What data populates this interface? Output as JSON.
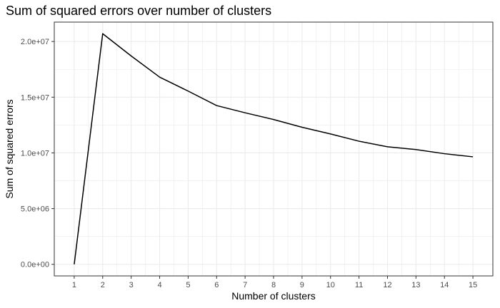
{
  "chart_data": {
    "type": "line",
    "title": "Sum of squared errors over number of clusters",
    "xlabel": "Number of clusters",
    "ylabel": "Sum of squared errors",
    "x": [
      1,
      2,
      3,
      4,
      5,
      6,
      7,
      8,
      9,
      10,
      11,
      12,
      13,
      14,
      15
    ],
    "series": [
      {
        "values": [
          0,
          20700000,
          18700000,
          16800000,
          15550000,
          14250000,
          13600000,
          13000000,
          12300000,
          11700000,
          11050000,
          10550000,
          10300000,
          9930000,
          9650000
        ]
      }
    ],
    "xticks": [
      "1",
      "2",
      "3",
      "4",
      "5",
      "6",
      "7",
      "8",
      "9",
      "10",
      "11",
      "12",
      "13",
      "14",
      "15"
    ],
    "yticks": [
      0,
      5000000,
      10000000,
      15000000,
      20000000
    ],
    "ytick_labels": [
      "0.0e+00",
      "5.0e+06",
      "1.0e+07",
      "1.5e+07",
      "2.0e+07"
    ],
    "xlim": [
      0.3,
      15.7
    ],
    "ylim": [
      -1040000,
      21740000
    ],
    "grid": true,
    "line_color": "#000000",
    "grid_color": "#ebebeb",
    "panel_border_color": "#333333"
  }
}
